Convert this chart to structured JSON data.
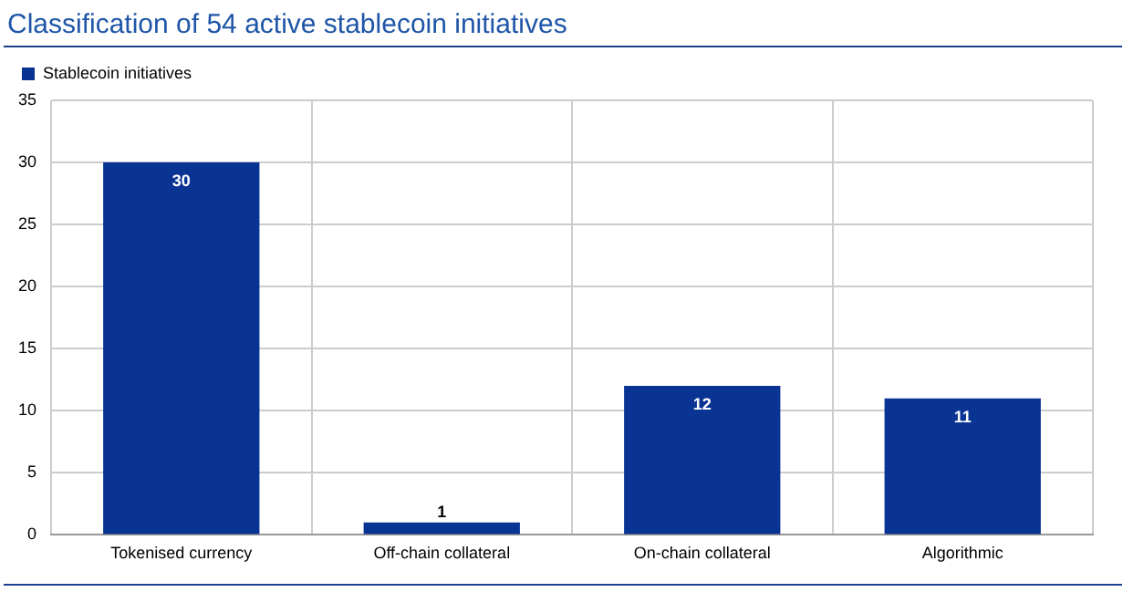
{
  "chart_data": {
    "type": "bar",
    "title": "Classification of 54 active stablecoin initiatives",
    "categories": [
      "Tokenised currency",
      "Off-chain collateral",
      "On-chain collateral",
      "Algorithmic"
    ],
    "series": [
      {
        "name": "Stablecoin initiatives",
        "color": "#0a3493",
        "values": [
          30,
          1,
          12,
          11
        ]
      }
    ],
    "ylim": [
      0,
      35
    ],
    "yticks": [
      0,
      5,
      10,
      15,
      20,
      25,
      30,
      35
    ],
    "grid": true,
    "legend": "top left",
    "data_labels": true
  }
}
